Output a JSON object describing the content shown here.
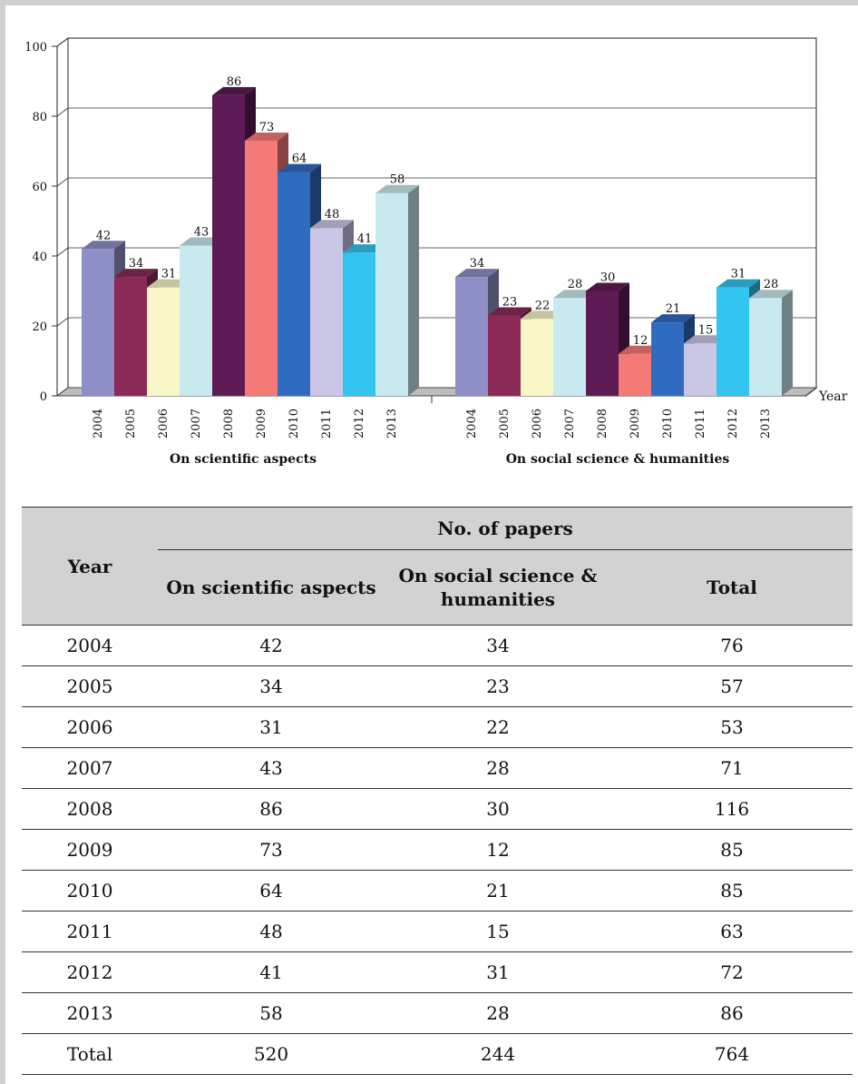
{
  "chart_data": {
    "type": "bar",
    "style": "3d",
    "yticks": [
      "0",
      "20",
      "40",
      "60",
      "80",
      "100"
    ],
    "ylim": [
      0,
      100
    ],
    "xlabel": "Year",
    "grid": true,
    "groups": [
      {
        "name": "On scientific aspects",
        "categories": [
          "2004",
          "2005",
          "2006",
          "2007",
          "2008",
          "2009",
          "2010",
          "2011",
          "2012",
          "2013"
        ],
        "values": [
          42,
          34,
          31,
          43,
          86,
          73,
          64,
          48,
          41,
          58
        ]
      },
      {
        "name": "On social science & humanities",
        "categories": [
          "2004",
          "2005",
          "2006",
          "2007",
          "2008",
          "2009",
          "2010",
          "2011",
          "2012",
          "2013"
        ],
        "values": [
          34,
          23,
          22,
          28,
          30,
          12,
          21,
          15,
          31,
          28
        ]
      }
    ],
    "bar_colors": [
      "#8f8fc8",
      "#8b2a56",
      "#f9f6c8",
      "#c9e9f0",
      "#5e1a55",
      "#f47a78",
      "#2f6cbf",
      "#c9c6e6",
      "#33c4f0",
      "#c9e9f0"
    ]
  },
  "table": {
    "col_year": "Year",
    "col_group": "No. of papers",
    "col_sci": "On scientific aspects",
    "col_soc_line1": "On social science &",
    "col_soc_line2": "humanities",
    "col_total": "Total",
    "rows": [
      [
        "2004",
        "42",
        "34",
        "76"
      ],
      [
        "2005",
        "34",
        "23",
        "57"
      ],
      [
        "2006",
        "31",
        "22",
        "53"
      ],
      [
        "2007",
        "43",
        "28",
        "71"
      ],
      [
        "2008",
        "86",
        "30",
        "116"
      ],
      [
        "2009",
        "73",
        "12",
        "85"
      ],
      [
        "2010",
        "64",
        "21",
        "85"
      ],
      [
        "2011",
        "48",
        "15",
        "63"
      ],
      [
        "2012",
        "41",
        "31",
        "72"
      ],
      [
        "2013",
        "58",
        "28",
        "86"
      ],
      [
        "Total",
        "520",
        "244",
        "764"
      ]
    ]
  }
}
